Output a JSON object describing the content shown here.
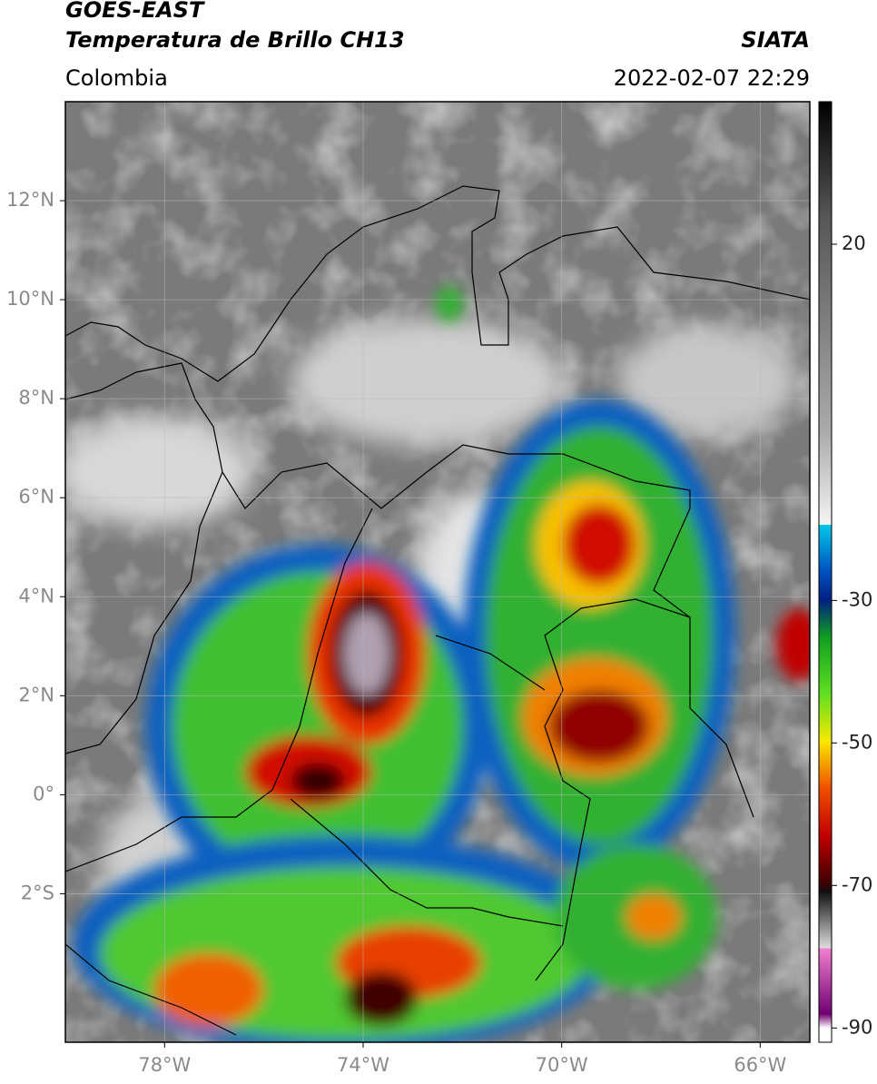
{
  "header": {
    "title": "GOES-EAST",
    "subtitle": "Temperatura de Brillo CH13",
    "region": "Colombia",
    "source": "SIATA",
    "datetime": "2022-02-07 22:29"
  },
  "map": {
    "xlim": [
      -80,
      -65
    ],
    "ylim": [
      -5,
      14
    ],
    "xticks": [
      {
        "value": -78,
        "label": "78°W"
      },
      {
        "value": -74,
        "label": "74°W"
      },
      {
        "value": -70,
        "label": "70°W"
      },
      {
        "value": -66,
        "label": "66°W"
      }
    ],
    "yticks": [
      {
        "value": 12,
        "label": "12°N"
      },
      {
        "value": 10,
        "label": "10°N"
      },
      {
        "value": 8,
        "label": "8°N"
      },
      {
        "value": 6,
        "label": "6°N"
      },
      {
        "value": 4,
        "label": "4°N"
      },
      {
        "value": 2,
        "label": "2°N"
      },
      {
        "value": 0,
        "label": "0°"
      },
      {
        "value": -2,
        "label": "2°S"
      }
    ],
    "grid": true
  },
  "colorbar": {
    "lim": [
      -92,
      40
    ],
    "ticks": [
      20,
      -30,
      -50,
      -70,
      -90
    ]
  }
}
